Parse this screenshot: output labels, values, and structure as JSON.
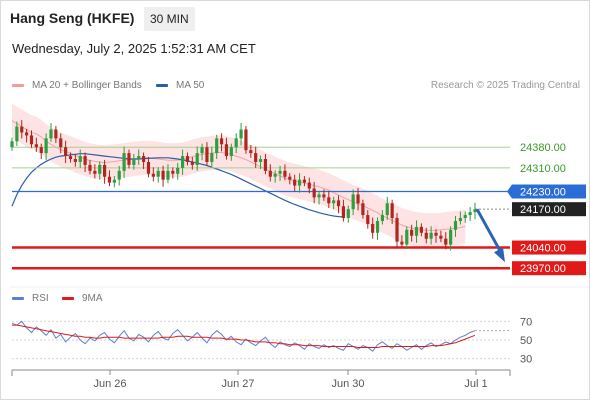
{
  "header": {
    "title": "Hang Seng (HKFE)",
    "interval": "30 MIN",
    "datetime": "Wednesday, July 2, 2025 1:52:31 AM CET",
    "credit": "Research © 2025 Trading Central"
  },
  "legend": {
    "ma20_label": "MA 20 + Bollinger Bands",
    "ma50_label": "MA 50",
    "rsi_label": "RSI",
    "rsi_ma_label": "9MA"
  },
  "colors": {
    "candle_up": "#2e9e3f",
    "candle_down": "#b0261e",
    "bollinger_fill": "#fde3e3",
    "ma20": "#f08a8a",
    "ma50": "#2c5ea8",
    "resistance": "#a8d08d",
    "pivot": "#2b6cd6",
    "support": "#e11919",
    "arrow": "#2b63b6",
    "rsi": "#5b7fd4",
    "rsi_ma": "#e11919"
  },
  "chart_data": [
    {
      "type": "candlestick",
      "x_labels": [
        "Jun 26",
        "Jun 27",
        "Jun 30",
        "Jul 1"
      ],
      "ylim": [
        23930,
        24540
      ],
      "levels": [
        {
          "value": 24380.0,
          "label": "24380.00",
          "kind": "resistance"
        },
        {
          "value": 24310.0,
          "label": "24310.00",
          "kind": "resistance"
        },
        {
          "value": 24230.0,
          "label": "24230.00",
          "kind": "pivot"
        },
        {
          "value": 24170.0,
          "label": "24170.00",
          "kind": "last"
        },
        {
          "value": 24040.0,
          "label": "24040.00",
          "kind": "support"
        },
        {
          "value": 23970.0,
          "label": "23970.00",
          "kind": "support"
        }
      ],
      "close": [
        24400,
        24450,
        24430,
        24420,
        24390,
        24380,
        24360,
        24410,
        24440,
        24410,
        24380,
        24350,
        24340,
        24330,
        24350,
        24320,
        24300,
        24290,
        24320,
        24280,
        24260,
        24270,
        24300,
        24360,
        24320,
        24340,
        24350,
        24330,
        24290,
        24280,
        24300,
        24270,
        24300,
        24290,
        24310,
        24350,
        24330,
        24320,
        24360,
        24380,
        24330,
        24360,
        24410,
        24390,
        24350,
        24380,
        24410,
        24440,
        24370,
        24360,
        24330,
        24340,
        24300,
        24280,
        24290,
        24300,
        24280,
        24270,
        24250,
        24270,
        24260,
        24240,
        24210,
        24220,
        24210,
        24190,
        24200,
        24180,
        24140,
        24170,
        24220,
        24190,
        24150,
        24120,
        24090,
        24130,
        24150,
        24190,
        24140,
        24060,
        24050,
        24100,
        24080,
        24110,
        24090,
        24070,
        24090,
        24080,
        24070,
        24050,
        24100,
        24130,
        24140,
        24150,
        24160,
        24170
      ],
      "ma20": [
        24470,
        24460,
        24450,
        24440,
        24430,
        24425,
        24415,
        24400,
        24390,
        24380,
        24372,
        24365,
        24360,
        24352,
        24346,
        24340,
        24335,
        24332,
        24330,
        24328,
        24330,
        24332,
        24334,
        24336,
        24338,
        24340,
        24342,
        24344,
        24344,
        24342,
        24340,
        24338,
        24336,
        24336,
        24336,
        24338,
        24342,
        24348,
        24352,
        24356,
        24358,
        24360,
        24362,
        24362,
        24360,
        24356,
        24350,
        24344,
        24338,
        24330,
        24322,
        24314,
        24306,
        24298,
        24290,
        24282,
        24276,
        24270,
        24266,
        24262,
        24258,
        24254,
        24250,
        24246,
        24240,
        24234,
        24226,
        24218,
        24210,
        24202,
        24194,
        24188,
        24182,
        24174,
        24166,
        24158,
        24148,
        24140,
        24132,
        24124,
        24116,
        24110,
        24106,
        24102,
        24100,
        24098,
        24098,
        24098,
        24100,
        24102,
        24104,
        24106,
        24108,
        24112
      ],
      "ma50": [
        24180,
        24220,
        24250,
        24275,
        24295,
        24310,
        24322,
        24332,
        24340,
        24346,
        24350,
        24352,
        24354,
        24356,
        24358,
        24358,
        24356,
        24354,
        24352,
        24350,
        24348,
        24346,
        24344,
        24342,
        24340,
        24340,
        24340,
        24341,
        24342,
        24343,
        24344,
        24344,
        24344,
        24342,
        24340,
        24337,
        24334,
        24330,
        24326,
        24322,
        24318,
        24312,
        24306,
        24300,
        24294,
        24288,
        24280,
        24272,
        24264,
        24256,
        24248,
        24240,
        24232,
        24224,
        24216,
        24208,
        24200,
        24193,
        24186,
        24180,
        24174,
        24168,
        24163,
        24158,
        24154,
        24150,
        24147,
        24145,
        24144
      ]
    },
    {
      "type": "line",
      "name": "RSI",
      "ylim": [
        20,
        80
      ],
      "ticks": [
        70,
        50,
        30
      ],
      "rsi": [
        68,
        66,
        70,
        63,
        58,
        64,
        60,
        55,
        61,
        52,
        56,
        48,
        53,
        57,
        50,
        46,
        52,
        49,
        55,
        58,
        51,
        47,
        54,
        60,
        52,
        49,
        56,
        53,
        48,
        55,
        59,
        52,
        50,
        57,
        61,
        55,
        49,
        53,
        58,
        52,
        47,
        55,
        60,
        56,
        50,
        54,
        48,
        45,
        51,
        47,
        44,
        49,
        53,
        46,
        42,
        48,
        45,
        43,
        47,
        44,
        40,
        46,
        43,
        41,
        45,
        42,
        44,
        41,
        39,
        46,
        43,
        40,
        44,
        42,
        38,
        45,
        48,
        44,
        41,
        46,
        43,
        39,
        42,
        45,
        40,
        44,
        47,
        43,
        45,
        48,
        46,
        50,
        53,
        55,
        58,
        60
      ],
      "rsi_ma": [
        66,
        66,
        65,
        64,
        63,
        62,
        61,
        60,
        59,
        58,
        57,
        56,
        55,
        54,
        54,
        53,
        53,
        52,
        52,
        53,
        53,
        53,
        53,
        52,
        52,
        52,
        52,
        52,
        52,
        52,
        52,
        53,
        53,
        53,
        54,
        54,
        54,
        53,
        53,
        53,
        53,
        52,
        52,
        52,
        51,
        51,
        51,
        50,
        50,
        49,
        48,
        48,
        48,
        47,
        47,
        46,
        46,
        45,
        45,
        45,
        44,
        44,
        44,
        44,
        43,
        43,
        43,
        43,
        43,
        43,
        43,
        42,
        42,
        42,
        42,
        42,
        43,
        43,
        43,
        43,
        43,
        43,
        43,
        43,
        43,
        43,
        44,
        44,
        44,
        45,
        46,
        47,
        49,
        51,
        53,
        55
      ],
      "current_rsi": 60
    }
  ]
}
